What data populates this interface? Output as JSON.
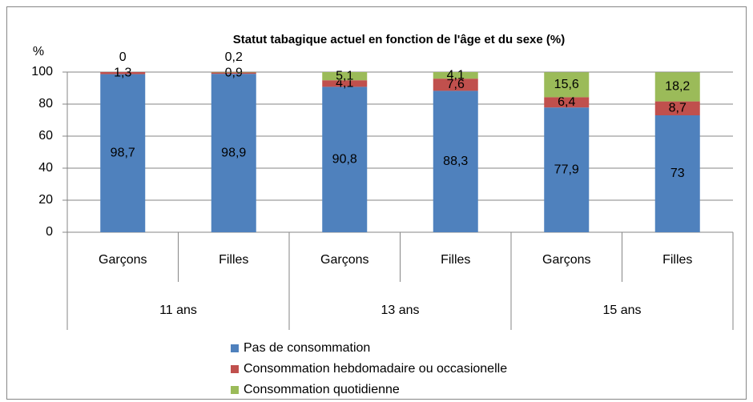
{
  "chart_data": {
    "type": "stacked_bar",
    "title": "Statut tabagique actuel en fonction de l'âge et du sexe (%)",
    "y_label": "%",
    "categories": [
      "Garçons",
      "Filles",
      "Garçons",
      "Filles",
      "Garçons",
      "Filles"
    ],
    "category_groups": [
      "11 ans",
      "13 ans",
      "15 ans"
    ],
    "series": [
      {
        "name": "Pas de consommation",
        "color": "#4f81bd",
        "values": [
          98.7,
          98.9,
          90.8,
          88.3,
          77.9,
          73
        ],
        "value_labels": [
          "98,7",
          "98,9",
          "90,8",
          "88,3",
          "77,9",
          "73"
        ]
      },
      {
        "name": "Consommation hebdomadaire ou occasionelle",
        "color": "#c0504d",
        "values": [
          1.3,
          0.9,
          4.1,
          7.6,
          6.4,
          8.7
        ],
        "value_labels": [
          "1,3",
          "0,9",
          "4,1",
          "7,6",
          "6,4",
          "8,7"
        ]
      },
      {
        "name": "Consommation quotidienne",
        "color": "#9bbb59",
        "values": [
          0,
          0.2,
          5.1,
          4.1,
          15.6,
          18.2
        ],
        "value_labels": [
          "0",
          "0,2",
          "5,1",
          "4,1",
          "15,6",
          "18,2"
        ]
      }
    ],
    "ylim": [
      0,
      100
    ],
    "yticks": [
      0,
      20,
      40,
      60,
      80,
      100
    ],
    "grid": true,
    "legend": "bottom"
  }
}
